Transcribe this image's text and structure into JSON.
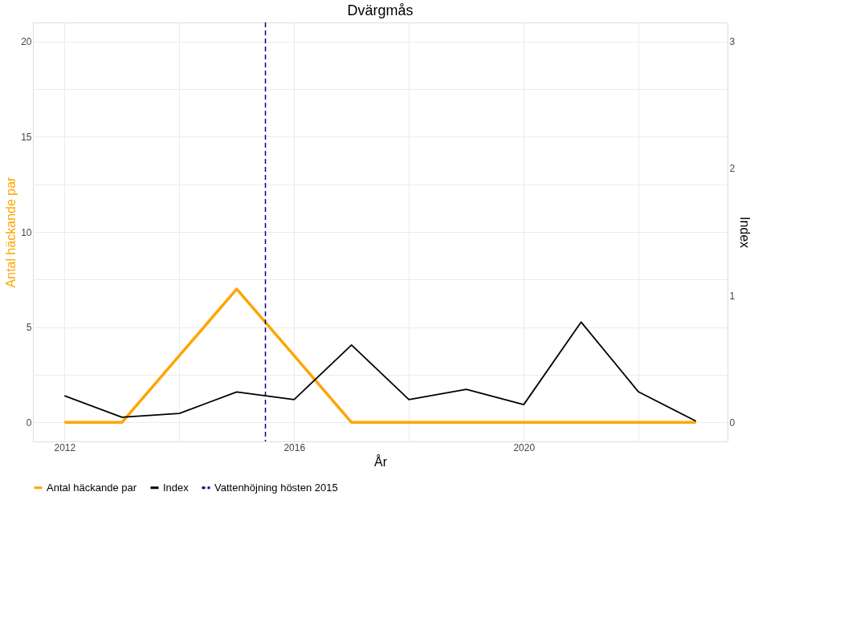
{
  "chart_data": {
    "type": "line",
    "title": "Dvärgmås",
    "xlabel": "År",
    "ylabel": "Antal häckande par",
    "y2label": "Index",
    "x": [
      2012,
      2013,
      2014,
      2015,
      2016,
      2017,
      2018,
      2019,
      2020,
      2021,
      2022,
      2023
    ],
    "series": [
      {
        "name": "Antal häckande par",
        "color": "#ffa500",
        "values": [
          0,
          0,
          3.5,
          7,
          3.5,
          0,
          0,
          0,
          0,
          0,
          0,
          0
        ]
      },
      {
        "name": "Index",
        "color": "#000000",
        "axis": "y2",
        "values": [
          0.21,
          0.04,
          0.07,
          0.24,
          0.18,
          0.61,
          0.18,
          0.26,
          0.14,
          0.79,
          0.24,
          0.01
        ]
      }
    ],
    "ref_lines": [
      {
        "axis": "x",
        "value": 2015.5,
        "label": "Vattenhöjning hösten 2015",
        "color": "#00008b",
        "line_style": "dashed"
      }
    ],
    "xlim": [
      2011.45,
      2023.55
    ],
    "xticks": [
      2012,
      {
        "value": 2014,
        "label": null
      },
      2016,
      {
        "value": 2018,
        "label": null
      },
      2020,
      {
        "value": 2022,
        "label": null
      }
    ],
    "ylim": [
      -1,
      21
    ],
    "yticks": [
      0,
      {
        "value": 2.5,
        "label": null
      },
      5,
      {
        "value": 7.5,
        "label": null
      },
      10,
      {
        "value": 12.5,
        "label": null
      },
      15,
      {
        "value": 17.5,
        "label": null
      },
      20
    ],
    "y2lim": [
      -0.15,
      3.15
    ],
    "y2ticks": [
      0,
      1,
      2,
      3
    ],
    "grid": true,
    "legend": "bottom",
    "marker": "none",
    "line_style": "solid"
  }
}
